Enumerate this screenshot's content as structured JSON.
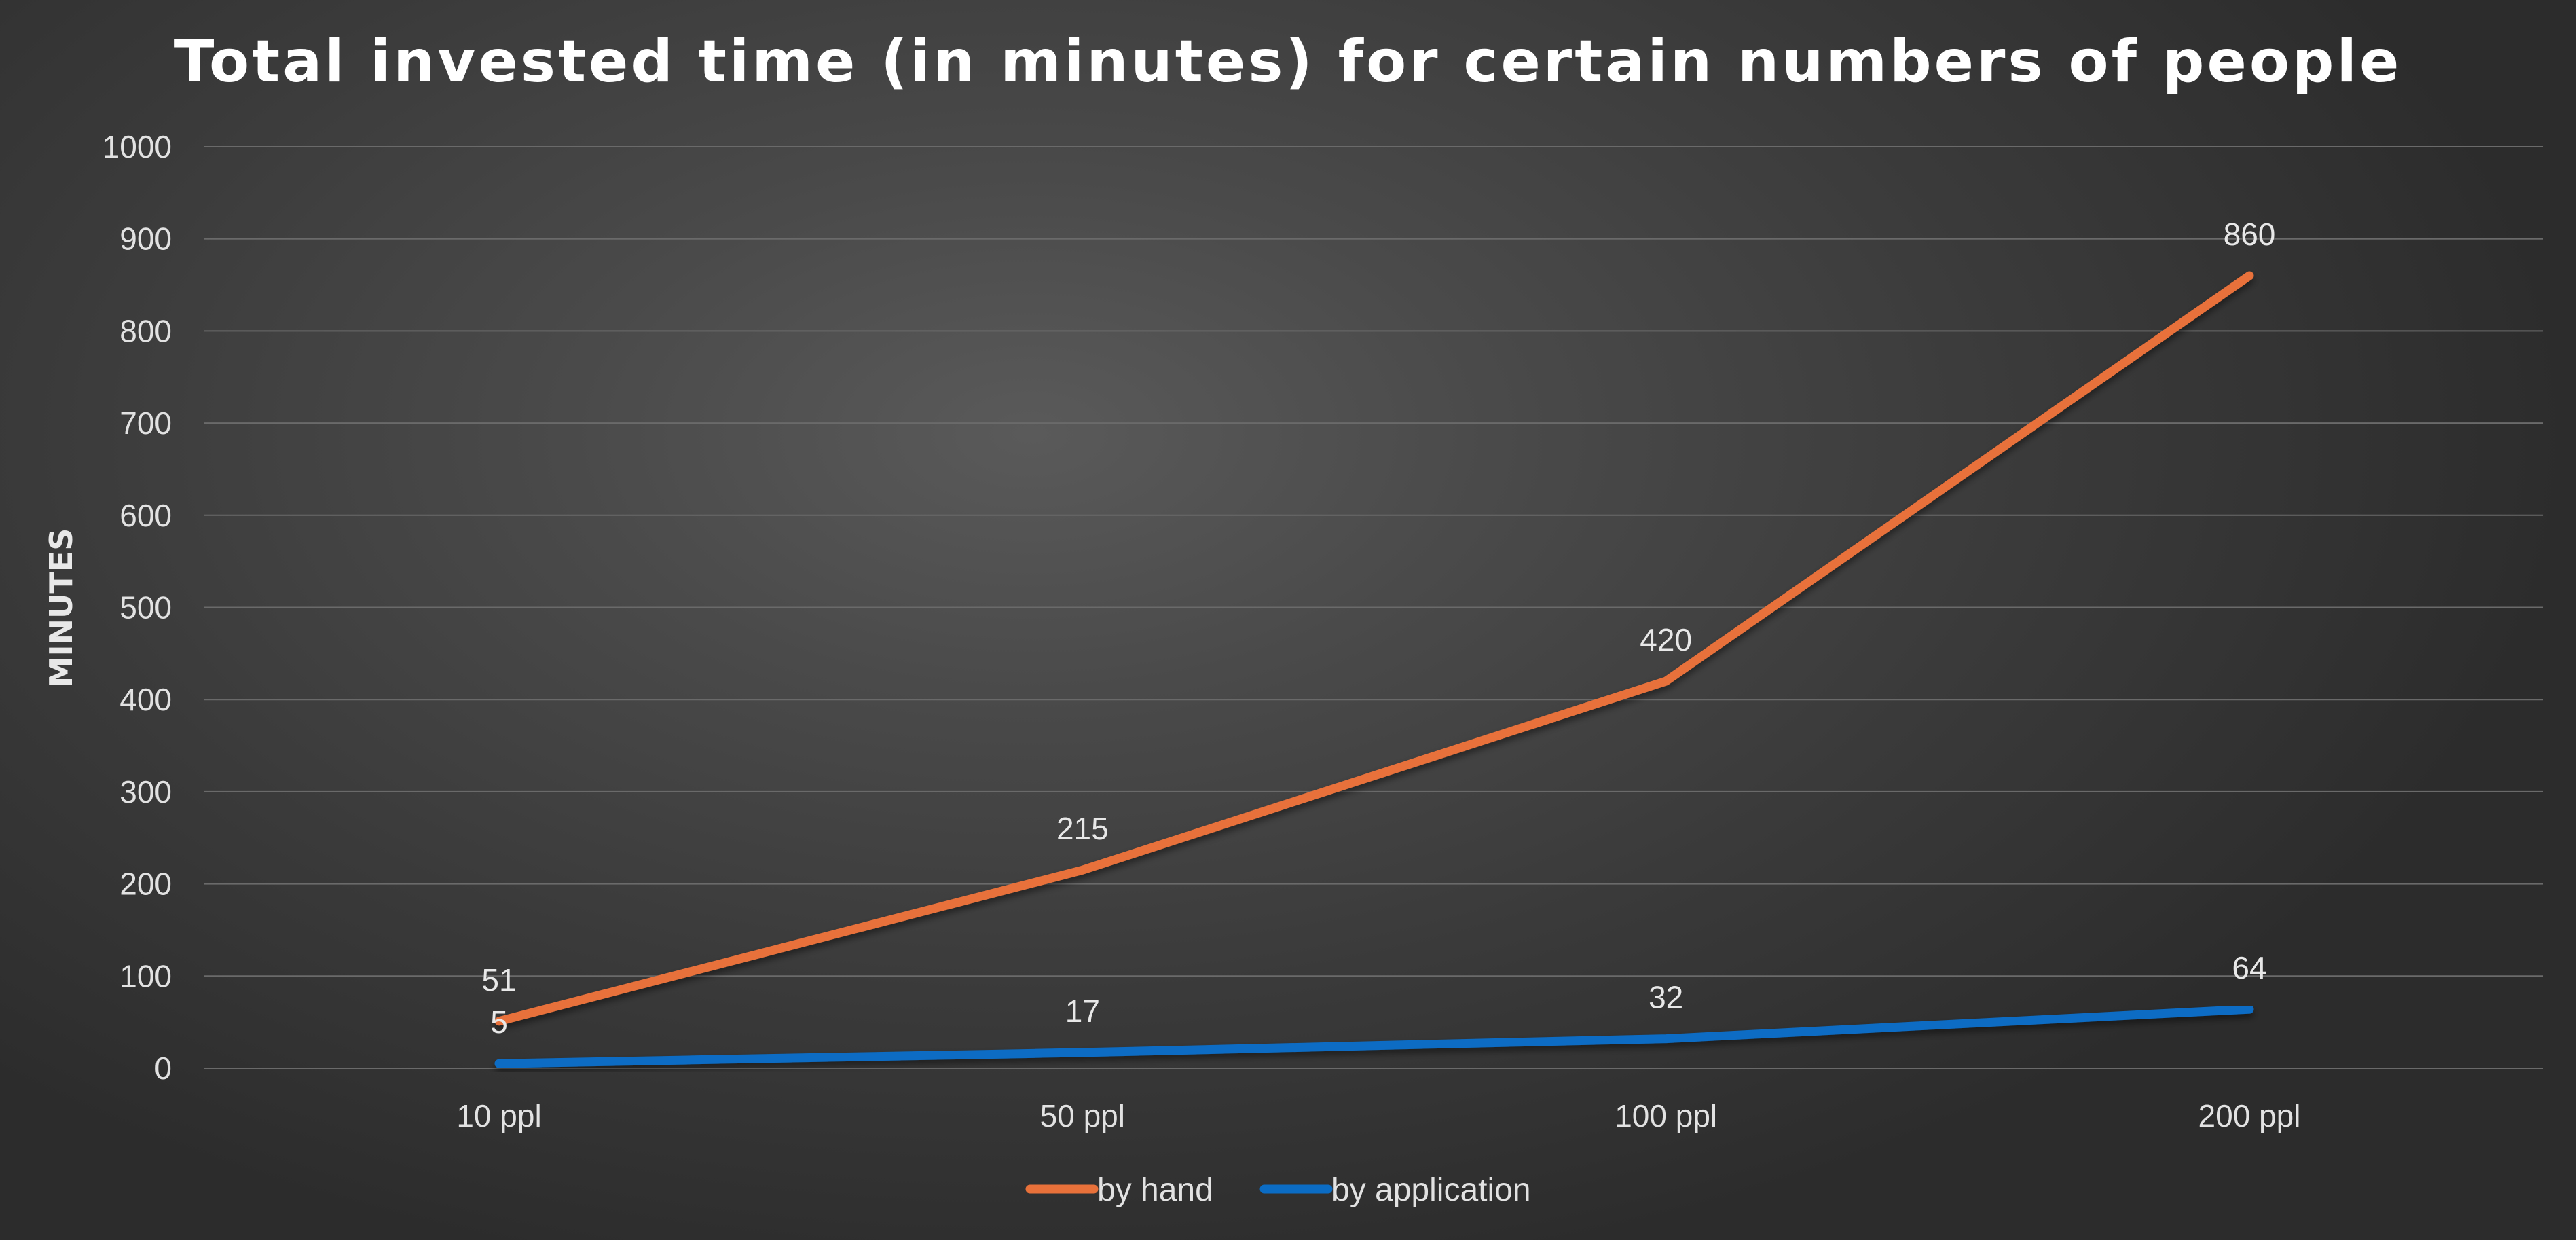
{
  "chart_data": {
    "type": "line",
    "title": "Total invested time (in minutes) for certain numbers of people",
    "xlabel": "",
    "ylabel": "MINUTES",
    "categories": [
      "10 ppl",
      "50 ppl",
      "100 ppl",
      "200 ppl"
    ],
    "ylim": [
      0,
      1000
    ],
    "yticks": [
      0,
      100,
      200,
      300,
      400,
      500,
      600,
      700,
      800,
      900,
      1000
    ],
    "grid": true,
    "legend_position": "bottom",
    "series": [
      {
        "name": "by hand",
        "color": "#e8713a",
        "values": [
          51,
          215,
          420,
          860
        ]
      },
      {
        "name": "by application",
        "color": "#0b6cc4",
        "values": [
          5,
          17,
          32,
          64
        ]
      }
    ]
  }
}
